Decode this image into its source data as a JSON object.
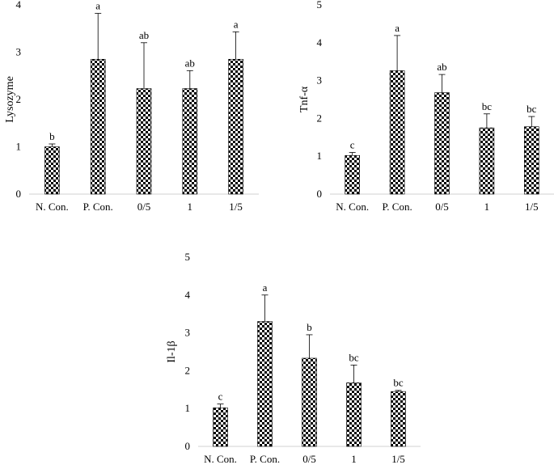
{
  "chart_data": [
    {
      "type": "bar",
      "ylabel": "Lysozyme",
      "ylim": [
        0,
        4
      ],
      "yticks": [
        0,
        1,
        2,
        3,
        4
      ],
      "categories": [
        "N. Con.",
        "P. Con.",
        "0/5",
        "1",
        "1/5"
      ],
      "values": [
        1.0,
        2.85,
        2.23,
        2.23,
        2.85
      ],
      "errors": [
        0.06,
        0.97,
        0.97,
        0.38,
        0.58
      ],
      "letters": [
        "b",
        "a",
        "ab",
        "ab",
        "a"
      ]
    },
    {
      "type": "bar",
      "ylabel": "Tnf-α",
      "ylim": [
        0,
        5
      ],
      "yticks": [
        0,
        1,
        2,
        3,
        4,
        5
      ],
      "categories": [
        "N. Con.",
        "P. Con.",
        "0/5",
        "1",
        "1/5"
      ],
      "values": [
        1.02,
        3.26,
        2.68,
        1.75,
        1.78
      ],
      "errors": [
        0.08,
        0.93,
        0.48,
        0.37,
        0.27
      ],
      "letters": [
        "c",
        "a",
        "ab",
        "bc",
        "bc"
      ]
    },
    {
      "type": "bar",
      "ylabel": "Il-1β",
      "ylim": [
        0,
        5
      ],
      "yticks": [
        0,
        1,
        2,
        3,
        4,
        5
      ],
      "categories": [
        "N. Con.",
        "P. Con.",
        "0/5",
        "1",
        "1/5"
      ],
      "values": [
        1.02,
        3.3,
        2.33,
        1.68,
        1.45
      ],
      "errors": [
        0.1,
        0.7,
        0.62,
        0.47,
        0.03
      ],
      "letters": [
        "c",
        "a",
        "b",
        "bc",
        "bc"
      ]
    }
  ]
}
